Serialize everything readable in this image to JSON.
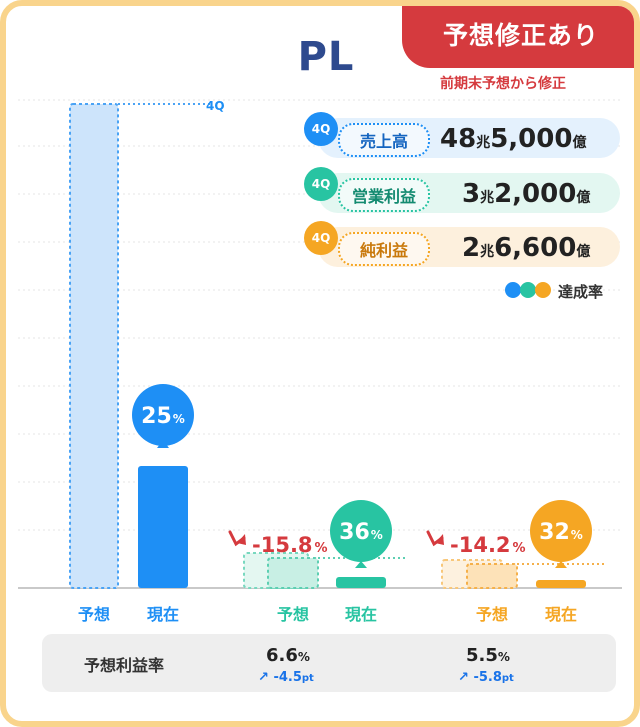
{
  "header": {
    "title": "PL",
    "badge": "予想修正あり",
    "badge_sub": "前期末予想から修正"
  },
  "legend": {
    "items": [
      {
        "q": "4Q",
        "label": "売上高",
        "value_big": "48",
        "unit1": "兆",
        "value2": "5,000",
        "unit2": "億",
        "color": "#1e8ff5",
        "bg": "#e4f1fd"
      },
      {
        "q": "4Q",
        "label": "営業利益",
        "value_big": "3",
        "unit1": "兆",
        "value2": "2,000",
        "unit2": "億",
        "color": "#28c4a2",
        "bg": "#e3f7f1"
      },
      {
        "q": "4Q",
        "label": "純利益",
        "value_big": "2",
        "unit1": "兆",
        "value2": "6,600",
        "unit2": "億",
        "color": "#f5a623",
        "bg": "#fdf0dd"
      }
    ],
    "achievement_label": "達成率"
  },
  "chart_data": {
    "type": "bar",
    "q_marker": "4Q",
    "groups": [
      {
        "name": "売上高",
        "forecast_label": "予想",
        "current_label": "現在",
        "achievement": "25",
        "achievement_unit": "%",
        "change": null,
        "color": "#1e8ff5"
      },
      {
        "name": "営業利益",
        "forecast_label": "予想",
        "current_label": "現在",
        "achievement": "36",
        "achievement_unit": "%",
        "change": "-15.8",
        "change_unit": "%",
        "color": "#28c4a2"
      },
      {
        "name": "純利益",
        "forecast_label": "予想",
        "current_label": "現在",
        "achievement": "32",
        "achievement_unit": "%",
        "change": "-14.2",
        "change_unit": "%",
        "color": "#f5a623"
      }
    ]
  },
  "margin": {
    "label": "予想利益率",
    "items": [
      {
        "value": "6.6",
        "unit": "%",
        "diff": "-4.5",
        "diff_unit": "pt"
      },
      {
        "value": "5.5",
        "unit": "%",
        "diff": "-5.8",
        "diff_unit": "pt"
      }
    ]
  }
}
